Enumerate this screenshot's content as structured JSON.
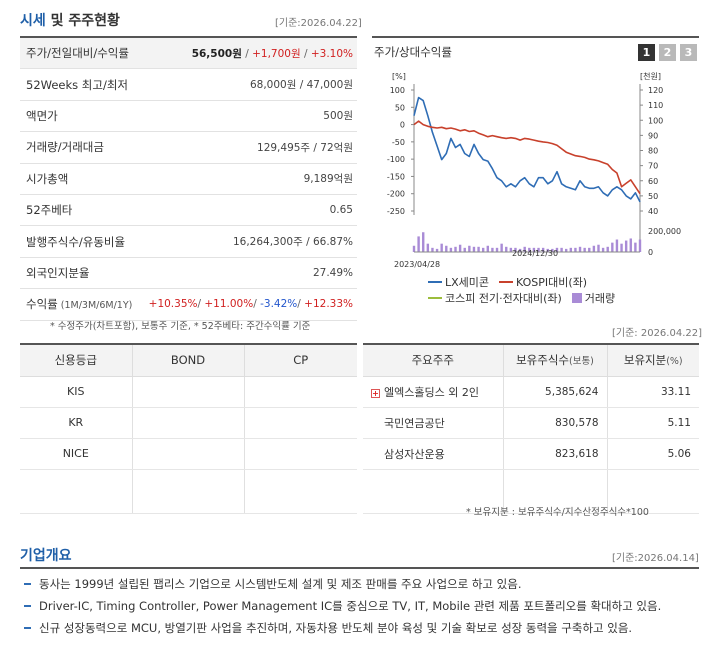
{
  "market": {
    "title_a": "시세",
    "title_b": "및 주주현황",
    "date": "[기준:2026.04.22]",
    "rows": [
      {
        "label": "주가/전일대비/수익률",
        "price": "56,500원",
        "sep1": " / ",
        "change": "+1,700원",
        "sep2": " / ",
        "pct": "+3.10%"
      },
      {
        "label": "52Weeks 최고/최저",
        "value": "68,000원 / 47,000원"
      },
      {
        "label": "액면가",
        "value": "500원"
      },
      {
        "label": "거래량/거래대금",
        "value": "129,495주 / 72억원"
      },
      {
        "label": "시가총액",
        "value": "9,189억원"
      },
      {
        "label": "52주베타",
        "value": "0.65"
      },
      {
        "label": "발행주식수/유동비율",
        "value": "16,264,300주 / 66.87%"
      },
      {
        "label": "외국인지분율",
        "value": "27.49%"
      },
      {
        "label": "수익률",
        "label_sub": " (1M/3M/6M/1Y)",
        "r1": "+10.35%",
        "s1": "/ ",
        "r2": "+11.00%",
        "s2": "/ ",
        "r3": "-3.42%",
        "s3": "/ ",
        "r4": "+12.33%"
      }
    ],
    "footnote": "* 수정주가(차트포함), 보통주 기준, * 52주베타: 주간수익률 기준"
  },
  "chart_panel": {
    "title": "주가/상대수익률",
    "pages": [
      "1",
      "2",
      "3"
    ],
    "legend": [
      {
        "name": "LX세미콘",
        "color": "#2f6db5",
        "kind": "line"
      },
      {
        "name": "KOSPI대비(좌)",
        "color": "#c8412c",
        "kind": "line"
      },
      {
        "name": "코스피 전기·전자대비(좌)",
        "color": "#9cbd3c",
        "kind": "line"
      },
      {
        "name": "거래량",
        "color": "#a98bd6",
        "kind": "box"
      }
    ]
  },
  "chart_data": {
    "type": "line",
    "left_unit": "[%]",
    "right_unit": "[천원]",
    "left_ticks": [
      100,
      50,
      0,
      -50,
      -100,
      -150,
      -200,
      -250
    ],
    "right_ticks": [
      120,
      110,
      100,
      90,
      80,
      70,
      60,
      50,
      40
    ],
    "volume_ticks": [
      "200,000",
      "0"
    ],
    "x_labels": [
      "2023/04/28",
      "2024/12/30"
    ],
    "left_range": [
      -250,
      100
    ],
    "right_range": [
      40,
      120
    ],
    "volume_range": [
      0,
      250000
    ],
    "series": [
      {
        "name": "LX세미콘",
        "axis": "right",
        "color": "#2f6db5",
        "values": [
          103,
          115,
          113,
          103,
          92,
          83,
          74,
          78,
          88,
          82,
          84,
          78,
          76,
          84,
          78,
          74,
          73,
          68,
          62,
          60,
          56,
          58,
          56,
          60,
          62,
          58,
          56,
          62,
          62,
          58,
          60,
          66,
          58,
          56,
          55,
          54,
          60,
          56,
          55,
          55,
          56,
          52,
          50,
          54,
          56,
          54,
          50,
          48,
          52,
          46
        ]
      },
      {
        "name": "KOSPI대비(좌)",
        "axis": "left",
        "color": "#c8412c",
        "values": [
          0,
          10,
          0,
          -5,
          -8,
          -10,
          -8,
          -12,
          -10,
          -13,
          -18,
          -15,
          -20,
          -18,
          -25,
          -30,
          -35,
          -32,
          -35,
          -38,
          -40,
          -38,
          -40,
          -45,
          -40,
          -42,
          -45,
          -48,
          -50,
          -52,
          -55,
          -60,
          -70,
          -80,
          -85,
          -90,
          -92,
          -95,
          -100,
          -102,
          -105,
          -110,
          -115,
          -130,
          -140,
          -180,
          -170,
          -160,
          -180,
          -200
        ]
      }
    ],
    "volume": [
      60000,
      150000,
      190000,
      80000,
      40000,
      30000,
      80000,
      60000,
      40000,
      50000,
      70000,
      40000,
      60000,
      50000,
      50000,
      40000,
      60000,
      40000,
      40000,
      80000,
      50000,
      40000,
      40000,
      30000,
      50000,
      40000,
      40000,
      40000,
      40000,
      30000,
      30000,
      40000,
      40000,
      30000,
      40000,
      40000,
      50000,
      40000,
      40000,
      60000,
      70000,
      40000,
      50000,
      90000,
      120000,
      80000,
      110000,
      130000,
      90000,
      120000
    ]
  },
  "credit": {
    "headers": [
      "신용등급",
      "BOND",
      "CP"
    ],
    "rows": [
      [
        "KIS",
        "",
        ""
      ],
      [
        "KR",
        "",
        ""
      ],
      [
        "NICE",
        "",
        ""
      ]
    ]
  },
  "holders": {
    "date": "[기준: 2026.04.22]",
    "headers": {
      "name": "주요주주",
      "shares": "보유주식수",
      "shares_sub": "(보통)",
      "ratio": "보유지분",
      "ratio_sub": "(%)"
    },
    "rows": [
      {
        "name": "엘엑스홀딩스 외 2인",
        "shares": "5,385,624",
        "ratio": "33.11",
        "expand": "+"
      },
      {
        "name": "국민연금공단",
        "shares": "830,578",
        "ratio": "5.11"
      },
      {
        "name": "삼성자산운용",
        "shares": "823,618",
        "ratio": "5.06"
      }
    ],
    "footnote": "* 보유지분 : 보유주식수/지수산정주식수*100"
  },
  "overview": {
    "title": "기업개요",
    "date": "[기준:2026.04.14]",
    "items": [
      "동사는 1999년 설립된 팹리스 기업으로 시스템반도체 설계 및 제조 판매를 주요 사업으로 하고 있음.",
      "Driver-IC, Timing Controller, Power Management IC를 중심으로 TV, IT, Mobile 관련 제품 포트폴리오를 확대하고 있음.",
      "신규 성장동력으로 MCU, 방열기판 사업을 추진하며, 자동차용 반도체 분야 육성 및 기술 확보로 성장 동력을 구축하고 있음."
    ]
  }
}
